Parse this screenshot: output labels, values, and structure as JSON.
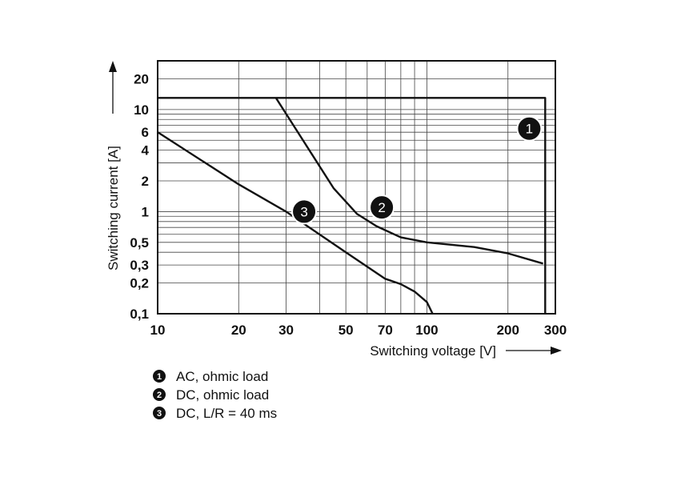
{
  "chart_data": {
    "type": "line",
    "xscale": "log",
    "yscale": "log",
    "xlabel": "Switching voltage [V]",
    "ylabel": "Switching current [A]",
    "xlim": [
      10,
      300
    ],
    "ylim": [
      0.1,
      30
    ],
    "x_ticks": [
      10,
      20,
      30,
      50,
      70,
      100,
      200,
      300
    ],
    "x_tick_labels": [
      "10",
      "20",
      "30",
      "50",
      "70",
      "100",
      "200",
      "300"
    ],
    "y_ticks": [
      0.1,
      0.2,
      0.3,
      0.5,
      1,
      2,
      4,
      6,
      10,
      20
    ],
    "y_tick_labels": [
      "0,1",
      "0,2",
      "0,3",
      "0,5",
      "1",
      "2",
      "4",
      "6",
      "10",
      "20"
    ],
    "x_grid": [
      10,
      20,
      30,
      40,
      50,
      60,
      70,
      80,
      90,
      100,
      200,
      300
    ],
    "y_grid": [
      0.1,
      0.2,
      0.3,
      0.4,
      0.5,
      0.6,
      0.7,
      0.8,
      0.9,
      1,
      2,
      3,
      4,
      5,
      6,
      7,
      8,
      9,
      10,
      20,
      30
    ],
    "grid": true,
    "series": [
      {
        "id": "1",
        "name": "AC, ohmic load",
        "x": [
          10,
          275,
          275
        ],
        "y": [
          13,
          13,
          0.1
        ],
        "marker_at": [
          240,
          6.5
        ]
      },
      {
        "id": "2",
        "name": "DC, ohmic load",
        "x": [
          27.5,
          35,
          45,
          55,
          65,
          80,
          100,
          150,
          200,
          270
        ],
        "y": [
          13,
          4.8,
          1.7,
          0.95,
          0.72,
          0.56,
          0.5,
          0.45,
          0.39,
          0.31
        ],
        "marker_at": [
          68,
          1.1
        ]
      },
      {
        "id": "3",
        "name": "DC, L/R = 40 ms",
        "x": [
          10,
          20,
          30,
          50,
          70,
          80,
          90,
          100,
          105
        ],
        "y": [
          6,
          1.85,
          1.0,
          0.4,
          0.22,
          0.195,
          0.165,
          0.13,
          0.1
        ],
        "marker_at": [
          35,
          1.0
        ]
      }
    ],
    "legend": [
      {
        "id": "1",
        "label": "AC, ohmic load"
      },
      {
        "id": "2",
        "label": "DC, ohmic load"
      },
      {
        "id": "3",
        "label": "DC, L/R = 40 ms"
      }
    ],
    "legend_position": "bottom-left"
  }
}
